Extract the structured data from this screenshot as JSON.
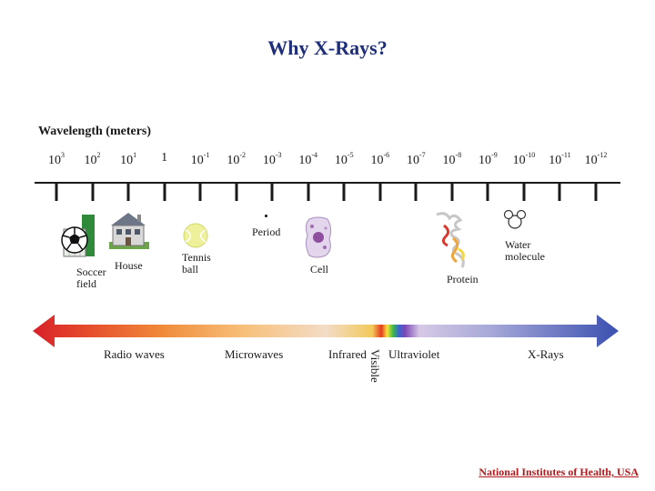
{
  "title": "Why X-Rays?",
  "axis_label": "Wavelength (meters)",
  "ticks": [
    {
      "base": "10",
      "exp": "3"
    },
    {
      "base": "10",
      "exp": "2"
    },
    {
      "base": "10",
      "exp": "1"
    },
    {
      "base": "1",
      "exp": ""
    },
    {
      "base": "10",
      "exp": "-1"
    },
    {
      "base": "10",
      "exp": "-2"
    },
    {
      "base": "10",
      "exp": "-3"
    },
    {
      "base": "10",
      "exp": "-4"
    },
    {
      "base": "10",
      "exp": "-5"
    },
    {
      "base": "10",
      "exp": "-6"
    },
    {
      "base": "10",
      "exp": "-7"
    },
    {
      "base": "10",
      "exp": "-8"
    },
    {
      "base": "10",
      "exp": "-9"
    },
    {
      "base": "10",
      "exp": "-10"
    },
    {
      "base": "10",
      "exp": "-11"
    },
    {
      "base": "10",
      "exp": "-12"
    }
  ],
  "objects": {
    "soccer_field": "Soccer field",
    "house": "House",
    "tennis_ball": "Tennis ball",
    "period": "Period",
    "cell": "Cell",
    "protein": "Protein",
    "water_molecule": "Water molecule"
  },
  "bands": {
    "radio": "Radio waves",
    "microwaves": "Microwaves",
    "infrared": "Infrared",
    "visible": "Visible",
    "ultraviolet": "Ultraviolet",
    "xrays": "X-Rays"
  },
  "credit": "National Institutes of Health, USA",
  "colors": {
    "title": "#1f2e7a",
    "credit": "#b0181c",
    "arrow_left": "#d8202a",
    "arrow_right": "#3a4fb0"
  },
  "icons": [
    "soccer-ball-icon",
    "goal-icon",
    "house-icon",
    "tennis-ball-icon",
    "cell-icon",
    "protein-icon",
    "water-molecule-icon"
  ]
}
